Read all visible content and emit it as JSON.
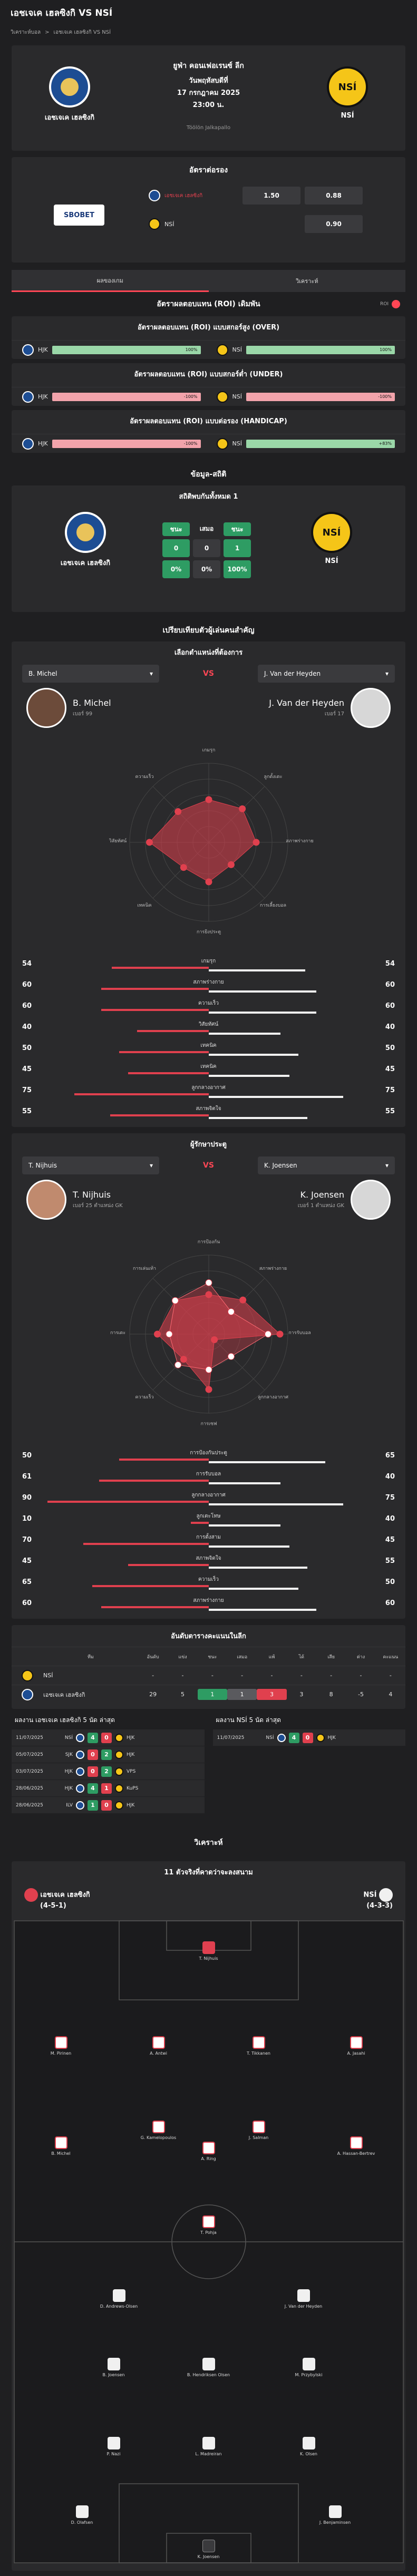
{
  "header": {
    "title": "เอชเจเค เฮลซิงกิ VS NSÍ"
  },
  "breadcrumb": {
    "home": "วิเคราะห์บอล",
    "sep": ">",
    "current": "เอชเจเค เฮลซิงกิ VS NSÍ"
  },
  "match": {
    "league": "ยูฟ่า คอนเฟอเรนซ์ ลีก",
    "date": "วันพฤหัสบดีที่",
    "date2": "17 กรกฎาคม 2025",
    "time": "23:00 น.",
    "venue": "Töölön Jalkapallo",
    "home": "เอชเจเค เฮลซิงกิ",
    "away": "NSÍ",
    "away_badge": "NSÍ"
  },
  "odds": {
    "title": "อัตราต่อรอง",
    "bookmaker": "SBOBET",
    "rows": [
      {
        "team": "เอชเจเค เฮลซิงกิ",
        "handicap": "1.50",
        "price": "0.88"
      },
      {
        "team": "NSÍ",
        "handicap": "",
        "price": "0.90"
      }
    ]
  },
  "tabs": [
    "ผลของเกม",
    "วิเคราะห์"
  ],
  "roi": {
    "title": "อัตราผลตอบแทน (ROI) เดิมพัน",
    "toggle": "ROI",
    "cards": [
      {
        "title": "อัตราผลตอบแทน (ROI) แบบสกอร์สูง (OVER)",
        "home_abbr": "HJK",
        "away_abbr": "NSÍ",
        "home_val": "100%",
        "away_val": "100%",
        "home_color": "green",
        "away_color": "green"
      },
      {
        "title": "อัตราผลตอบแทน (ROI) แบบสกอร์ต่ำ (UNDER)",
        "home_abbr": "HJK",
        "away_abbr": "NSÍ",
        "home_val": "-100%",
        "away_val": "-100%",
        "home_color": "red",
        "away_color": "red"
      },
      {
        "title": "อัตราผลตอบแทน (ROI) แบบต่อรอง (HANDICAP)",
        "home_abbr": "HJK",
        "away_abbr": "NSÍ",
        "home_val": "-100%",
        "away_val": "+83%",
        "home_color": "red",
        "away_color": "green"
      }
    ]
  },
  "stats": {
    "section": "ข้อมูล-สถิติ",
    "title": "สถิติพบกันทั้งหมด 1",
    "home": "เอชเจเค เฮลซิงกิ",
    "away": "NSÍ",
    "heads": [
      "ชนะ",
      "เสมอ",
      "ชนะ"
    ],
    "counts": [
      "0",
      "0",
      "1"
    ],
    "pcts": [
      "0%",
      "0%",
      "100%"
    ]
  },
  "compare": {
    "section": "เปรียบเทียบตัวผู้เล่นคนสำคัญ",
    "subtitle": "เลือกตำแหน่งที่ต้องการ",
    "vs": "VS",
    "p1": {
      "select": "B. Michel",
      "name": "B. Michel",
      "meta_label": "เบอร์",
      "number": "99"
    },
    "p2": {
      "select": "J. Van der Heyden",
      "name": "J. Van der Heyden",
      "meta_label": "เบอร์",
      "number": "17"
    },
    "radar_axes": [
      "เกมรุก",
      "ลูกตั้งเตะ",
      "สภาพร่างกาย",
      "การเลี้ยงบอล",
      "การยิงประตู",
      "เทคนิค",
      "วิสัยทัศน์",
      "ความเร็ว"
    ],
    "rows": [
      {
        "label": "เกมรุก",
        "l": 54,
        "r": 54
      },
      {
        "label": "สภาพร่างกาย",
        "l": 60,
        "r": 60
      },
      {
        "label": "ความเร็ว",
        "l": 60,
        "r": 60
      },
      {
        "label": "วิสัยทัศน์",
        "l": 40,
        "r": 40
      },
      {
        "label": "เทคนิค",
        "l": 50,
        "r": 50
      },
      {
        "label": "เทคนิค",
        "l": 45,
        "r": 45
      },
      {
        "label": "ลูกกลางอากาศ",
        "l": 75,
        "r": 75
      },
      {
        "label": "สภาพจิตใจ",
        "l": 55,
        "r": 55
      }
    ]
  },
  "gk": {
    "subtitle": "ผู้รักษาประตู",
    "vs": "VS",
    "p1": {
      "select": "T. Nijhuis",
      "name": "T. Nijhuis",
      "meta_label": "เบอร์",
      "number": "25",
      "pos_label": "ตำแหน่ง",
      "pos": "GK"
    },
    "p2": {
      "select": "K. Joensen",
      "name": "K. Joensen",
      "meta_label": "เบอร์",
      "number": "1",
      "pos_label": "ตำแหน่ง",
      "pos": "GK"
    },
    "radar_axes": [
      "การป้องกัน",
      "สภาพร่างกาย",
      "การรับบอล",
      "ลูกกลางอากาศ",
      "การเซฟ",
      "ความเร็ว",
      "การเตะ",
      "การเล่นเท้า"
    ],
    "rows": [
      {
        "label": "การป้องกันประตู",
        "l": 50,
        "r": 65
      },
      {
        "label": "การรับบอล",
        "l": 61,
        "r": 40
      },
      {
        "label": "ลูกกลางอากาศ",
        "l": 90,
        "r": 75
      },
      {
        "label": "ลูกเตะโทษ",
        "l": 10,
        "r": 40
      },
      {
        "label": "การตั้งสาม",
        "l": 70,
        "r": 45
      },
      {
        "label": "สภาพจิตใจ",
        "l": 45,
        "r": 55
      },
      {
        "label": "ความเร็ว",
        "l": 65,
        "r": 50
      },
      {
        "label": "สภาพร่างกาย",
        "l": 60,
        "r": 60
      }
    ]
  },
  "table": {
    "title": "อันดับตารางคะแนนในลีก",
    "headers": [
      "",
      "ทีม",
      "อันดับ",
      "แข่ง",
      "ชนะ",
      "เสมอ",
      "แพ้",
      "ได้",
      "เสีย",
      "ต่าง",
      "คะแนน"
    ],
    "rows": [
      [
        "",
        "NSÍ",
        "-",
        "-",
        "-",
        "-",
        "-",
        "-",
        "-",
        "-",
        "-"
      ],
      [
        "",
        "เอชเจเค เฮลซิงกิ",
        "29",
        "5",
        "1",
        "1",
        "3",
        "3",
        "8",
        "-5",
        "4"
      ]
    ]
  },
  "form": {
    "home_title": "ผลงาน เอชเจเค เฮลซิงกิ 5 นัด ล่าสุด",
    "away_title": "ผลงาน NSÍ 5 นัด ล่าสุด",
    "home": [
      {
        "date": "11/07/2025",
        "a": "NSÍ",
        "s1": "4",
        "s2": "0",
        "b": "HJK",
        "c1": "#2e9c63",
        "c2": "#e0404e"
      },
      {
        "date": "05/07/2025",
        "a": "SJK",
        "s1": "0",
        "s2": "2",
        "b": "HJK",
        "c1": "#e0404e",
        "c2": "#2e9c63"
      },
      {
        "date": "03/07/2025",
        "a": "HJK",
        "s1": "0",
        "s2": "2",
        "b": "VPS",
        "c1": "#e0404e",
        "c2": "#2e9c63"
      },
      {
        "date": "28/06/2025",
        "a": "HJK",
        "s1": "4",
        "s2": "1",
        "b": "KuPS",
        "c1": "#2e9c63",
        "c2": "#e0404e"
      },
      {
        "date": "28/06/2025",
        "a": "ILV",
        "s1": "1",
        "s2": "0",
        "b": "HJK",
        "c1": "#2e9c63",
        "c2": "#e0404e"
      }
    ],
    "away": [
      {
        "date": "11/07/2025",
        "a": "NSÍ",
        "s1": "4",
        "s2": "0",
        "b": "HJK",
        "c1": "#2e9c63",
        "c2": "#e0404e"
      }
    ]
  },
  "lineup": {
    "section": "วิเคราะห์",
    "title": "11 ตัวจริงที่คาดว่าจะลงสนาม",
    "home": "เอชเจเค เฮลซิงกิ",
    "home_form": "(4-5-1)",
    "away": "NSÍ",
    "away_form": "(4-3-3)",
    "players": [
      {
        "name": "T. Nijhuis",
        "team": "h",
        "gk": true
      },
      {
        "name": "M. Pirinen",
        "team": "h"
      },
      {
        "name": "A. Antwi",
        "team": "h"
      },
      {
        "name": "T. Tikkanen",
        "team": "h"
      },
      {
        "name": "A. Jasahi",
        "team": "h"
      },
      {
        "name": "B. Michel",
        "team": "h"
      },
      {
        "name": "G. Kamelopoulos",
        "team": "h"
      },
      {
        "name": "A. Ring",
        "team": "h"
      },
      {
        "name": "J. Salman",
        "team": "h"
      },
      {
        "name": "A. Hassan-Bertrev",
        "team": "h"
      },
      {
        "name": "T. Pohja",
        "team": "h"
      },
      {
        "name": "D. Andrews-Olsen",
        "team": "a"
      },
      {
        "name": "J. Van der Heyden",
        "team": "a"
      },
      {
        "name": "B. Joensen",
        "team": "a"
      },
      {
        "name": "B. Hendriksen Olsen",
        "team": "a"
      },
      {
        "name": "M. Przybylski",
        "team": "a"
      },
      {
        "name": "P. Nazi",
        "team": "a"
      },
      {
        "name": "L. Madreiran",
        "team": "a"
      },
      {
        "name": "K. Olsen",
        "team": "a"
      },
      {
        "name": "D. Olafsen",
        "team": "a"
      },
      {
        "name": "J. Benjaminsen",
        "team": "a"
      },
      {
        "name": "K. Joensen",
        "team": "a",
        "gk": true
      }
    ]
  }
}
